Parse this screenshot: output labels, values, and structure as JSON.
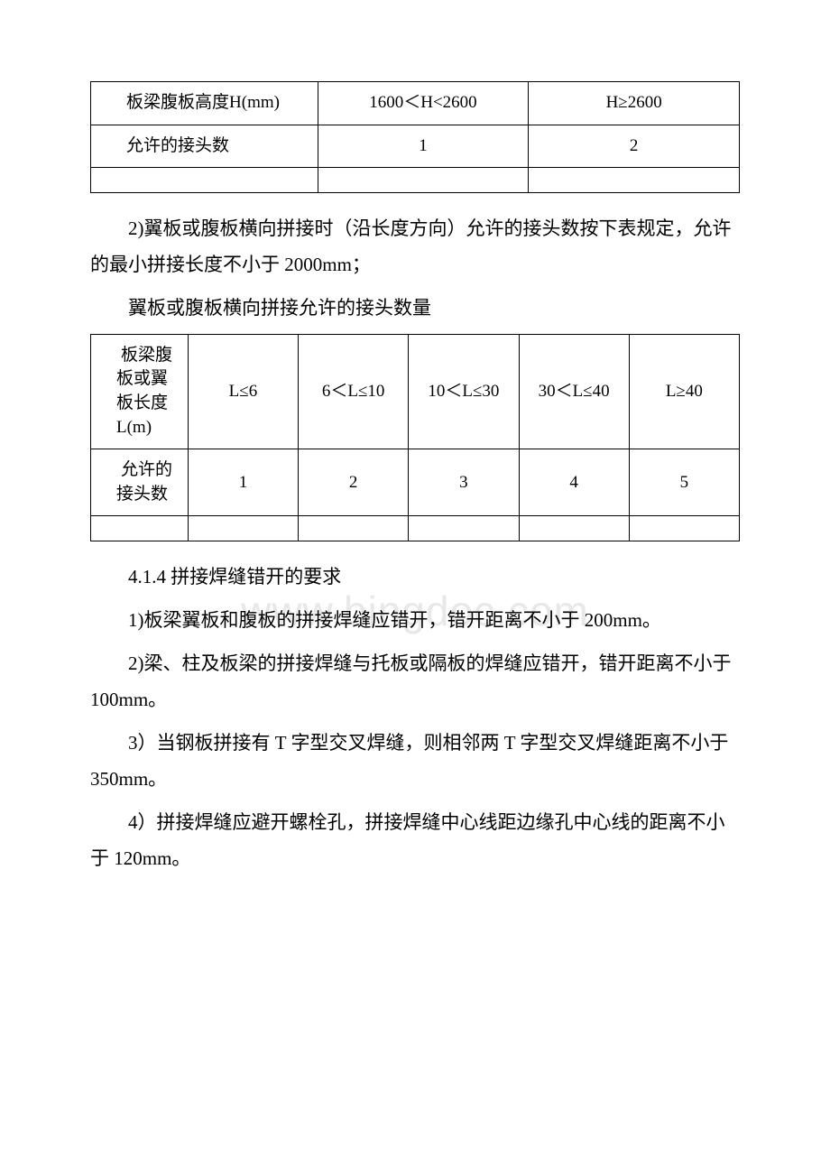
{
  "watermark": "www.bingdoc.com",
  "table1": {
    "header_col1": "板梁腹板高度H(mm)",
    "header_col2": "1600＜H<2600",
    "header_col3": "H≥2600",
    "row1_label": "允许的接头数",
    "row1_val1": "1",
    "row1_val2": "2"
  },
  "para1": "2)翼板或腹板横向拼接时（沿长度方向）允许的接头数按下表规定，允许的最小拼接长度不小于 2000mm；",
  "caption1": "翼板或腹板横向拼接允许的接头数量",
  "table2": {
    "header_col1": "板梁腹板或翼板长度L(m)",
    "header_col2": "L≤6",
    "header_col3": "6＜L≤10",
    "header_col4": "10＜L≤30",
    "header_col5": "30＜L≤40",
    "header_col6": "L≥40",
    "row1_label": "允许的接头数",
    "row1_val1": "1",
    "row1_val2": "2",
    "row1_val3": "3",
    "row1_val4": "4",
    "row1_val5": "5"
  },
  "para2": "4.1.4 拼接焊缝错开的要求",
  "para3": "1)板梁翼板和腹板的拼接焊缝应错开，错开距离不小于 200mm。",
  "para4": "2)梁、柱及板梁的拼接焊缝与托板或隔板的焊缝应错开，错开距离不小于 100mm。",
  "para5": "3）当钢板拼接有 T 字型交叉焊缝，则相邻两 T 字型交叉焊缝距离不小于 350mm。",
  "para6": "4）拼接焊缝应避开螺栓孔，拼接焊缝中心线距边缘孔中心线的距离不小于 120mm。",
  "colors": {
    "text": "#000000",
    "background": "#ffffff",
    "border": "#000000",
    "watermark": "#e8e8e8"
  },
  "fonts": {
    "body_size": 21,
    "table_size": 19,
    "watermark_size": 46
  }
}
